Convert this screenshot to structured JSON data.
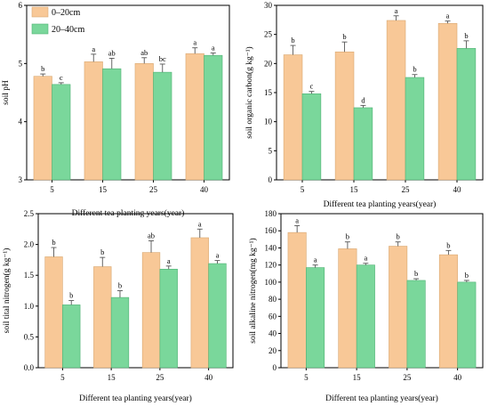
{
  "legend": {
    "series": [
      {
        "name": "0–20cm",
        "color": "#f8c897"
      },
      {
        "name": "20–40cm",
        "color": "#7ad79b"
      }
    ]
  },
  "chart_data": [
    {
      "type": "bar",
      "categories": [
        "5",
        "15",
        "25",
        "40"
      ],
      "xlabel": "Different tea planting years(year)",
      "ylabel": "soil pH",
      "ylim": [
        3,
        6
      ],
      "yticks": [
        3,
        4,
        5,
        6
      ],
      "series": [
        {
          "name": "0–20cm",
          "values": [
            4.78,
            5.03,
            5.0,
            5.17
          ],
          "errors": [
            0.04,
            0.13,
            0.1,
            0.1
          ],
          "sig": [
            "b",
            "a",
            "ab",
            "a"
          ]
        },
        {
          "name": "20–40cm",
          "values": [
            4.64,
            4.91,
            4.85,
            5.14
          ],
          "errors": [
            0.03,
            0.18,
            0.14,
            0.04
          ],
          "sig": [
            "c",
            "ab",
            "bc",
            "a"
          ]
        }
      ]
    },
    {
      "type": "bar",
      "categories": [
        "5",
        "15",
        "25",
        "40"
      ],
      "xlabel": "Different tea planting years(year)",
      "ylabel": "soil organic carbon(g kg⁻¹)",
      "ylim": [
        0,
        30
      ],
      "yticks": [
        0,
        5,
        10,
        15,
        20,
        25,
        30
      ],
      "series": [
        {
          "name": "0–20cm",
          "values": [
            21.5,
            22.0,
            27.4,
            26.9
          ],
          "errors": [
            1.6,
            1.7,
            0.8,
            0.4
          ],
          "sig": [
            "b",
            "b",
            "a",
            "a"
          ]
        },
        {
          "name": "20–40cm",
          "values": [
            14.8,
            12.4,
            17.6,
            22.6
          ],
          "errors": [
            0.4,
            0.4,
            0.5,
            1.3
          ],
          "sig": [
            "c",
            "d",
            "b",
            "b"
          ]
        }
      ]
    },
    {
      "type": "bar",
      "categories": [
        "5",
        "15",
        "25",
        "40"
      ],
      "xlabel": "Different tea planting years(year)",
      "ylabel": "soil tital nitrogen(g kg⁻¹)",
      "ylim": [
        0,
        2.5
      ],
      "yticks": [
        0.0,
        0.5,
        1.0,
        1.5,
        2.0,
        2.5
      ],
      "series": [
        {
          "name": "0–20cm",
          "values": [
            1.8,
            1.64,
            1.87,
            2.11
          ],
          "errors": [
            0.15,
            0.15,
            0.19,
            0.14
          ],
          "sig": [
            "b",
            "b",
            "ab",
            "a"
          ]
        },
        {
          "name": "20–40cm",
          "values": [
            1.02,
            1.14,
            1.6,
            1.69
          ],
          "errors": [
            0.07,
            0.11,
            0.05,
            0.05
          ],
          "sig": [
            "b",
            "b",
            "a",
            "a"
          ]
        }
      ]
    },
    {
      "type": "bar",
      "categories": [
        "5",
        "15",
        "25",
        "40"
      ],
      "xlabel": "Different tea planting years(year)",
      "ylabel": "soil alkaline nitrogen(mg kg⁻¹)",
      "ylim": [
        0,
        180
      ],
      "yticks": [
        0,
        20,
        40,
        60,
        80,
        100,
        120,
        140,
        160,
        180
      ],
      "series": [
        {
          "name": "0–20cm",
          "values": [
            158,
            139,
            142,
            132
          ],
          "errors": [
            8,
            8,
            5,
            5
          ],
          "sig": [
            "a",
            "b",
            "b",
            "b"
          ]
        },
        {
          "name": "20–40cm",
          "values": [
            117,
            120,
            102,
            100
          ],
          "errors": [
            3,
            2,
            2,
            2
          ],
          "sig": [
            "a",
            "a",
            "b",
            "b"
          ]
        }
      ]
    }
  ]
}
